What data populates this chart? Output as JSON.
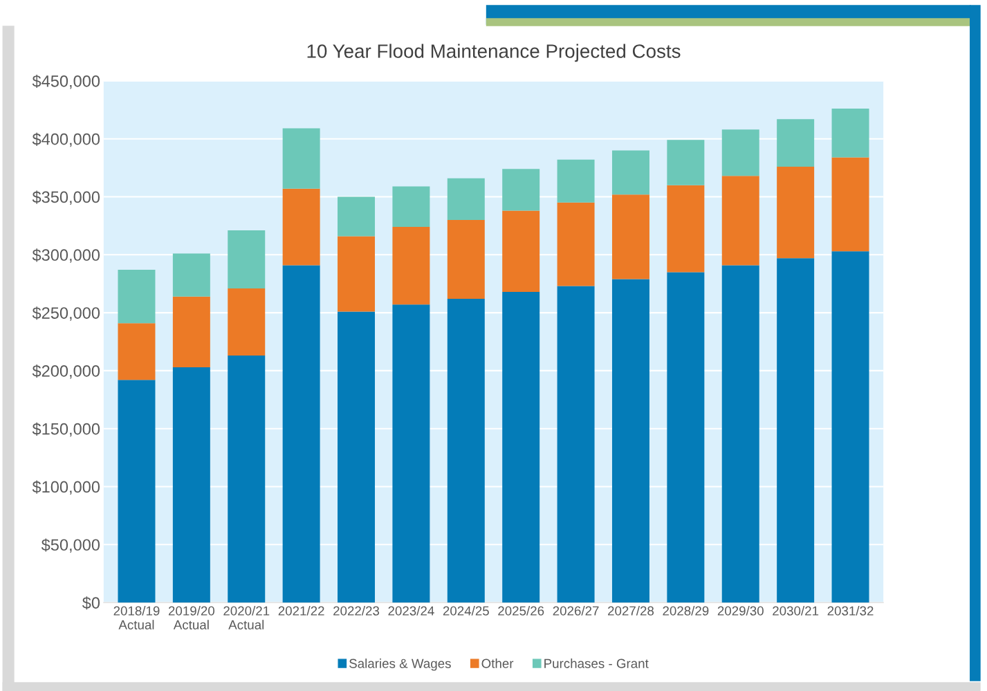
{
  "chart_data": {
    "type": "bar",
    "title": "10 Year Flood Maintenance Projected Costs",
    "stacked": true,
    "categories": [
      "2018/19\nActual",
      "2019/20\nActual",
      "2020/21\nActual",
      "2021/22",
      "2022/23",
      "2023/24",
      "2024/25",
      "2025/26",
      "2026/27",
      "2027/28",
      "2028/29",
      "2029/30",
      "2030/21",
      "2031/32"
    ],
    "series": [
      {
        "name": "Salaries & Wages",
        "color": "#047cb8",
        "values": [
          192000,
          203000,
          213000,
          291000,
          251000,
          257000,
          262000,
          268000,
          273000,
          279000,
          285000,
          291000,
          297000,
          303000
        ]
      },
      {
        "name": "Other",
        "color": "#ec7a26",
        "values": [
          49000,
          61000,
          58000,
          66000,
          65000,
          67000,
          68000,
          70000,
          72000,
          73000,
          75000,
          77000,
          79000,
          81000
        ]
      },
      {
        "name": "Purchases - Grant",
        "color": "#6cc8b8",
        "values": [
          46000,
          37000,
          50000,
          52000,
          34000,
          35000,
          36000,
          36000,
          37000,
          38000,
          39000,
          40000,
          41000,
          42000
        ]
      }
    ],
    "ylim": [
      0,
      450000
    ],
    "yticks": [
      {
        "value": 0,
        "label": "$0"
      },
      {
        "value": 50000,
        "label": "$50,000"
      },
      {
        "value": 100000,
        "label": "$100,000"
      },
      {
        "value": 150000,
        "label": "$150,000"
      },
      {
        "value": 200000,
        "label": "$200,000"
      },
      {
        "value": 250000,
        "label": "$250,000"
      },
      {
        "value": 300000,
        "label": "$300,000"
      },
      {
        "value": 350000,
        "label": "$350,000"
      },
      {
        "value": 400000,
        "label": "$400,000"
      },
      {
        "value": 450000,
        "label": "$450,000"
      }
    ],
    "grid": "y",
    "legend": "bottom"
  }
}
